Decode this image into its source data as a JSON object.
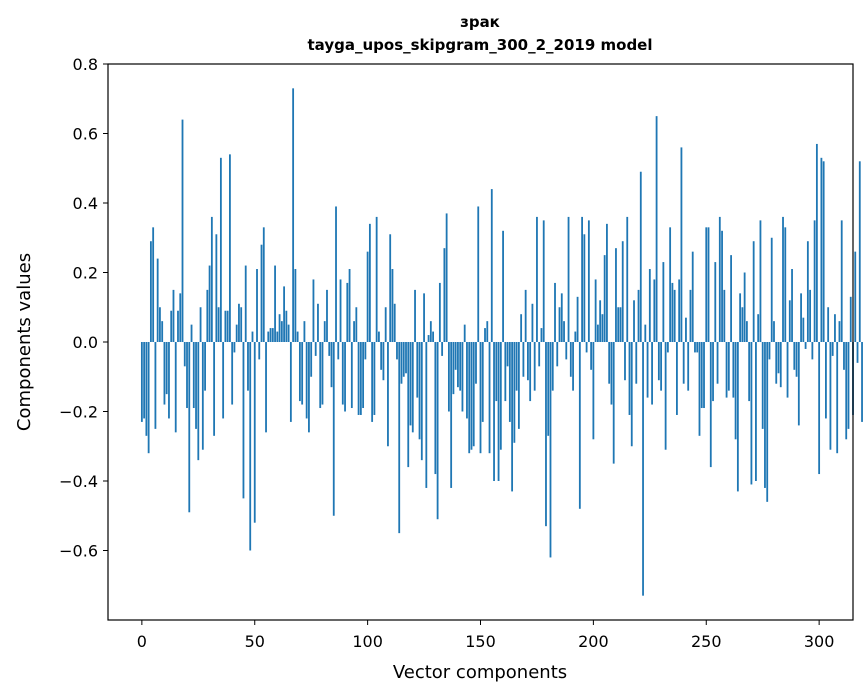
{
  "chart_data": {
    "type": "bar",
    "title_lines": [
      "зрак",
      "tayga_upos_skipgram_300_2_2019 model"
    ],
    "xlabel": "Vector components",
    "ylabel": "Components values",
    "xlim": [
      -15,
      315
    ],
    "ylim": [
      -0.8,
      0.8
    ],
    "x_ticks": [
      0,
      50,
      100,
      150,
      200,
      250,
      300
    ],
    "x_tick_labels": [
      "0",
      "50",
      "100",
      "150",
      "200",
      "250",
      "300"
    ],
    "y_ticks": [
      -0.6,
      -0.4,
      -0.2,
      0.0,
      0.2,
      0.4,
      0.6,
      0.8
    ],
    "y_tick_labels": [
      "−0.6",
      "−0.4",
      "−0.2",
      "0.0",
      "0.2",
      "0.4",
      "0.6",
      "0.8"
    ],
    "grid": false,
    "legend": "none",
    "bar_color": "#1f77b4",
    "values": [
      -0.23,
      -0.22,
      -0.27,
      -0.32,
      0.29,
      0.33,
      -0.25,
      0.24,
      0.1,
      0.06,
      -0.18,
      -0.15,
      -0.22,
      0.09,
      0.15,
      -0.26,
      0.09,
      0.14,
      0.64,
      -0.07,
      -0.19,
      -0.49,
      0.05,
      -0.19,
      -0.25,
      -0.34,
      0.1,
      -0.31,
      -0.14,
      0.15,
      0.22,
      0.36,
      -0.27,
      0.31,
      0.1,
      0.53,
      -0.22,
      0.09,
      0.09,
      0.54,
      -0.18,
      -0.03,
      0.05,
      0.11,
      0.1,
      -0.45,
      0.22,
      -0.14,
      -0.6,
      0.03,
      -0.52,
      0.21,
      -0.05,
      0.28,
      0.33,
      -0.26,
      0.03,
      0.04,
      0.04,
      0.22,
      0.03,
      0.08,
      0.06,
      0.16,
      0.09,
      0.05,
      -0.23,
      0.73,
      0.21,
      0.03,
      -0.17,
      -0.18,
      0.06,
      -0.22,
      -0.26,
      -0.1,
      0.18,
      -0.04,
      0.11,
      -0.19,
      -0.18,
      0.06,
      0.15,
      -0.04,
      -0.13,
      -0.5,
      0.39,
      -0.05,
      0.18,
      -0.18,
      -0.2,
      0.17,
      0.21,
      -0.19,
      0.06,
      0.1,
      -0.21,
      -0.21,
      -0.19,
      -0.05,
      0.26,
      0.34,
      -0.23,
      -0.21,
      0.36,
      0.03,
      -0.08,
      -0.11,
      0.1,
      -0.3,
      0.31,
      0.21,
      0.11,
      -0.05,
      -0.55,
      -0.12,
      -0.1,
      -0.09,
      -0.36,
      -0.24,
      -0.26,
      0.15,
      -0.16,
      -0.28,
      -0.34,
      0.14,
      -0.42,
      0.02,
      0.06,
      0.03,
      -0.38,
      -0.51,
      0.17,
      -0.04,
      0.27,
      0.37,
      -0.2,
      -0.42,
      -0.15,
      -0.08,
      -0.13,
      -0.14,
      -0.2,
      0.05,
      -0.22,
      -0.32,
      -0.31,
      -0.3,
      -0.12,
      0.39,
      -0.32,
      -0.23,
      0.04,
      0.06,
      -0.32,
      0.44,
      -0.4,
      -0.17,
      -0.4,
      -0.31,
      0.32,
      -0.17,
      -0.07,
      -0.23,
      -0.43,
      -0.29,
      -0.14,
      -0.25,
      0.08,
      -0.1,
      0.15,
      -0.11,
      -0.17,
      0.11,
      -0.14,
      0.36,
      -0.07,
      0.04,
      0.35,
      -0.53,
      -0.27,
      -0.62,
      -0.14,
      0.17,
      -0.07,
      0.1,
      0.14,
      0.06,
      -0.05,
      0.36,
      -0.1,
      -0.14,
      0.03,
      0.13,
      -0.48,
      0.36,
      0.31,
      -0.03,
      0.35,
      -0.08,
      -0.28,
      0.18,
      0.05,
      0.12,
      0.08,
      0.25,
      0.34,
      -0.12,
      -0.18,
      -0.35,
      0.27,
      0.1,
      0.1,
      0.29,
      -0.11,
      0.36,
      -0.21,
      -0.3,
      0.12,
      -0.12,
      0.15,
      0.49,
      -0.73,
      0.05,
      -0.16,
      0.21,
      -0.18,
      0.18,
      0.65,
      -0.11,
      -0.14,
      0.23,
      -0.31,
      -0.03,
      0.33,
      0.17,
      0.15,
      -0.21,
      0.18,
      0.56,
      -0.12,
      0.07,
      -0.14,
      0.15,
      0.26,
      -0.03,
      -0.03,
      -0.27,
      -0.19,
      -0.19,
      0.33,
      0.33,
      -0.36,
      -0.17,
      0.23,
      -0.12,
      0.36,
      0.32,
      0.15,
      -0.16,
      -0.14,
      0.25,
      -0.16,
      -0.28,
      -0.43,
      0.14,
      0.1,
      0.2,
      0.06,
      -0.17,
      -0.41,
      0.29,
      -0.4,
      0.08,
      0.35,
      -0.25,
      -0.42,
      -0.46,
      -0.05,
      0.3,
      0.06,
      -0.12,
      -0.09,
      -0.13,
      0.36,
      0.33,
      -0.16,
      0.12,
      0.21,
      -0.08,
      -0.1,
      -0.24,
      0.14,
      0.07,
      -0.02,
      0.29,
      0.15,
      -0.05,
      0.35,
      0.57,
      -0.38,
      0.53,
      0.52,
      -0.22,
      0.1,
      -0.31,
      -0.04,
      0.08,
      -0.32,
      0.06,
      0.35,
      -0.08,
      -0.28,
      -0.25,
      0.13,
      -0.21,
      0.26,
      -0.06,
      0.52,
      -0.23
    ]
  }
}
